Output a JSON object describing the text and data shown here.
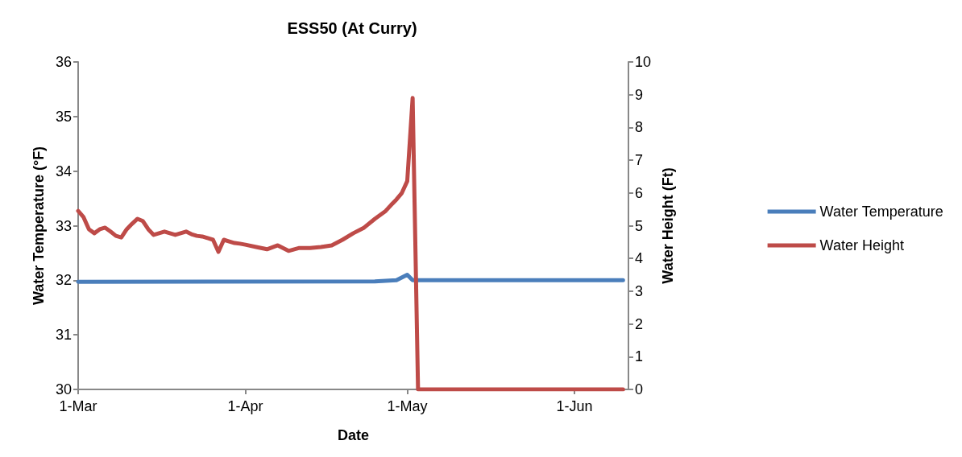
{
  "chart_data": {
    "type": "line",
    "title": "ESS50 (At Curry)",
    "xlabel": "Date",
    "ylabel": "Water Temperature (°F)",
    "y2label": "Water Height (Ft)",
    "xlim": [
      "--03-01",
      "--06-11"
    ],
    "xticks": [
      {
        "value": "--03-01",
        "label": "1-Mar"
      },
      {
        "value": "--04-01",
        "label": "1-Apr"
      },
      {
        "value": "--05-01",
        "label": "1-May"
      },
      {
        "value": "--06-01",
        "label": "1-Jun"
      }
    ],
    "ylim": [
      30,
      36
    ],
    "yticks": [
      30,
      31,
      32,
      33,
      34,
      35,
      36
    ],
    "y2lim": [
      0,
      10
    ],
    "y2ticks": [
      0,
      1,
      2,
      3,
      4,
      5,
      6,
      7,
      8,
      9,
      10
    ],
    "legend": "right",
    "grid": false,
    "marker": "none",
    "line_style": "solid",
    "series": [
      {
        "name": "Water Temperature",
        "color": "#4a7ebb",
        "x": [
          "--03-01",
          "--04-25",
          "--04-29",
          "--05-01",
          "--05-02",
          "--06-10"
        ],
        "values": [
          31.97,
          31.98,
          32.0,
          32.1,
          32.0,
          32.0
        ]
      },
      {
        "name": "Water Height",
        "color": "#be4b48",
        "axis": "y2",
        "x": [
          "--03-01",
          "--03-02",
          "--03-03",
          "--03-04",
          "--03-05",
          "--03-06",
          "--03-07",
          "--03-08",
          "--03-09",
          "--03-10",
          "--03-11",
          "--03-12",
          "--03-13",
          "--03-14",
          "--03-15",
          "--03-16",
          "--03-17",
          "--03-18",
          "--03-19",
          "--03-20",
          "--03-21",
          "--03-22",
          "--03-23",
          "--03-24",
          "--03-25",
          "--03-26",
          "--03-27",
          "--03-28",
          "--03-29",
          "--03-30",
          "--03-31",
          "--04-01",
          "--04-03",
          "--04-05",
          "--04-07",
          "--04-09",
          "--04-11",
          "--04-13",
          "--04-15",
          "--04-17",
          "--04-19",
          "--04-21",
          "--04-23",
          "--04-25",
          "--04-27",
          "--04-28",
          "--04-29",
          "--04-30",
          "--05-01",
          "--05-02",
          "--05-03",
          "--06-10"
        ],
        "values": [
          5.45,
          5.26,
          4.89,
          4.77,
          4.89,
          4.94,
          4.82,
          4.69,
          4.64,
          4.89,
          5.06,
          5.21,
          5.14,
          4.89,
          4.72,
          4.77,
          4.82,
          4.77,
          4.72,
          4.77,
          4.82,
          4.74,
          4.69,
          4.67,
          4.62,
          4.57,
          4.2,
          4.57,
          4.52,
          4.47,
          4.45,
          4.42,
          4.35,
          4.28,
          4.4,
          4.23,
          4.32,
          4.32,
          4.35,
          4.4,
          4.57,
          4.77,
          4.94,
          5.21,
          5.45,
          5.63,
          5.8,
          6.0,
          6.36,
          8.9,
          0,
          0
        ]
      }
    ]
  }
}
